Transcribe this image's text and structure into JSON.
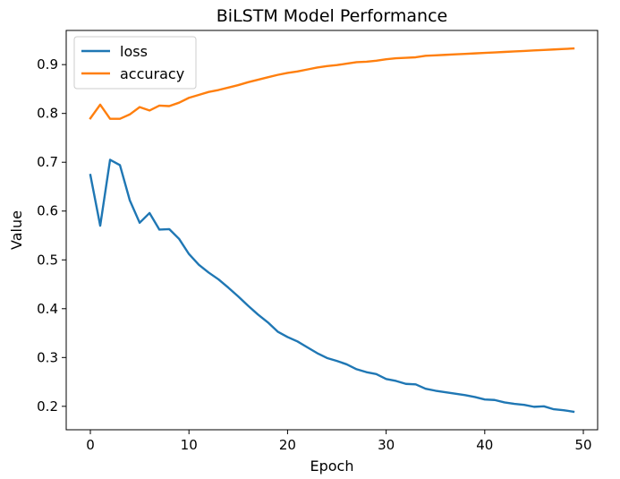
{
  "chart_data": {
    "type": "line",
    "title": "BiLSTM Model Performance",
    "xlabel": "Epoch",
    "ylabel": "Value",
    "xlim": [
      -2.45,
      51.45
    ],
    "ylim": [
      0.152,
      0.97
    ],
    "xticks": [
      0,
      10,
      20,
      30,
      40,
      50
    ],
    "yticks": [
      0.2,
      0.3,
      0.4,
      0.5,
      0.6,
      0.7,
      0.8,
      0.9
    ],
    "grid": false,
    "legend_position": "top-left",
    "x": [
      0,
      1,
      2,
      3,
      4,
      5,
      6,
      7,
      8,
      9,
      10,
      11,
      12,
      13,
      14,
      15,
      16,
      17,
      18,
      19,
      20,
      21,
      22,
      23,
      24,
      25,
      26,
      27,
      28,
      29,
      30,
      31,
      32,
      33,
      34,
      35,
      36,
      37,
      38,
      39,
      40,
      41,
      42,
      43,
      44,
      45,
      46,
      47,
      48,
      49
    ],
    "series": [
      {
        "name": "loss",
        "color": "#1f77b4",
        "values": [
          0.674,
          0.57,
          0.705,
          0.694,
          0.622,
          0.576,
          0.596,
          0.562,
          0.563,
          0.543,
          0.512,
          0.49,
          0.474,
          0.46,
          0.443,
          0.425,
          0.406,
          0.388,
          0.372,
          0.353,
          0.342,
          0.333,
          0.321,
          0.309,
          0.299,
          0.293,
          0.286,
          0.276,
          0.27,
          0.266,
          0.256,
          0.252,
          0.246,
          0.245,
          0.236,
          0.232,
          0.229,
          0.226,
          0.223,
          0.219,
          0.214,
          0.213,
          0.208,
          0.205,
          0.203,
          0.199,
          0.2,
          0.194,
          0.192,
          0.189
        ]
      },
      {
        "name": "accuracy",
        "color": "#ff7f0e",
        "values": [
          0.79,
          0.818,
          0.789,
          0.789,
          0.798,
          0.813,
          0.806,
          0.816,
          0.815,
          0.822,
          0.832,
          0.838,
          0.844,
          0.848,
          0.853,
          0.858,
          0.864,
          0.869,
          0.874,
          0.879,
          0.883,
          0.886,
          0.89,
          0.894,
          0.897,
          0.899,
          0.902,
          0.905,
          0.906,
          0.908,
          0.911,
          0.913,
          0.914,
          0.915,
          0.918,
          0.919,
          0.92,
          0.921,
          0.922,
          0.923,
          0.924,
          0.925,
          0.926,
          0.927,
          0.928,
          0.929,
          0.93,
          0.931,
          0.932,
          0.933
        ]
      }
    ]
  }
}
